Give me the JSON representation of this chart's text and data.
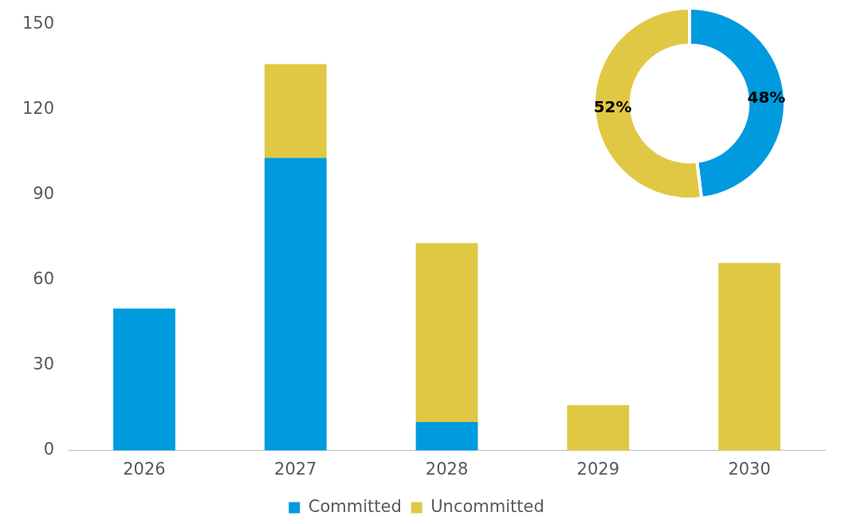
{
  "chart_data": [
    {
      "type": "bar",
      "stacked": true,
      "categories": [
        "2026",
        "2027",
        "2028",
        "2029",
        "2030"
      ],
      "series": [
        {
          "name": "Committed",
          "color": "#009ade",
          "values": [
            50,
            103,
            10,
            0,
            0
          ]
        },
        {
          "name": "Uncommitted",
          "color": "#e0c844",
          "values": [
            0,
            33,
            63,
            16,
            66
          ]
        }
      ],
      "ylim": [
        0,
        150
      ],
      "yticks": [
        0,
        30,
        60,
        90,
        120,
        150
      ],
      "grid": false,
      "legend": "bottom"
    },
    {
      "type": "donut",
      "categories": [
        null,
        null
      ],
      "values": [
        48,
        52
      ],
      "colors": [
        "#009ade",
        "#e0c844"
      ],
      "value_labels": [
        "48%",
        "52%"
      ],
      "legend": false
    }
  ]
}
